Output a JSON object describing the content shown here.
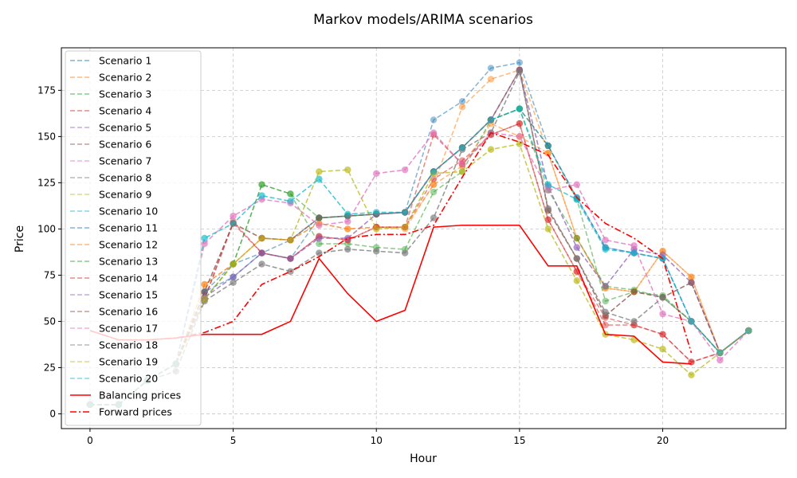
{
  "chart_data": {
    "type": "line",
    "title": "Markov models/ARIMA scenarios",
    "xlabel": "Hour",
    "ylabel": "Price",
    "xlim": [
      -1,
      24.3
    ],
    "ylim": [
      -8,
      198
    ],
    "xticks": [
      0,
      5,
      10,
      15,
      20
    ],
    "yticks": [
      0,
      25,
      50,
      75,
      100,
      125,
      150,
      175
    ],
    "grid": true,
    "legend_position": "upper-left",
    "x": [
      0,
      1,
      2,
      3,
      4,
      5,
      6,
      7,
      8,
      9,
      10,
      11,
      12,
      13,
      14,
      15,
      16,
      17,
      18,
      19,
      20,
      21,
      22,
      23
    ],
    "series": [
      {
        "name": "Scenario 1",
        "color": "#1f77b4",
        "values": [
          5,
          5,
          18,
          27,
          66,
          81,
          87,
          94,
          106,
          107,
          108,
          109,
          159,
          169,
          187,
          190,
          145,
          117,
          90,
          87,
          84,
          50,
          33,
          45
        ]
      },
      {
        "name": "Scenario 2",
        "color": "#ff7f0e",
        "values": [
          5,
          5,
          18,
          27,
          70,
          81,
          95,
          94,
          103,
          100,
          101,
          101,
          124,
          166,
          181,
          186,
          141,
          95,
          68,
          66,
          88,
          74,
          33,
          45
        ]
      },
      {
        "name": "Scenario 3",
        "color": "#2ca02c",
        "values": [
          5,
          5,
          18,
          27,
          62,
          81,
          124,
          119,
          92,
          92,
          90,
          89,
          120,
          131,
          159,
          165,
          145,
          116,
          61,
          66,
          64,
          50,
          33,
          45
        ]
      },
      {
        "name": "Scenario 4",
        "color": "#d62728",
        "values": [
          5,
          5,
          18,
          27,
          62,
          104,
          87,
          84,
          96,
          94,
          101,
          101,
          127,
          137,
          151,
          157,
          105,
          77,
          48,
          48,
          43,
          28,
          33,
          45
        ]
      },
      {
        "name": "Scenario 5",
        "color": "#9467bd",
        "values": [
          5,
          5,
          18,
          27,
          63,
          74,
          87,
          84,
          95,
          95,
          108,
          109,
          131,
          144,
          159,
          186,
          123,
          90,
          69,
          89,
          86,
          71,
          33,
          45
        ]
      },
      {
        "name": "Scenario 6",
        "color": "#8c564b",
        "values": [
          5,
          5,
          18,
          27,
          66,
          103,
          95,
          94,
          106,
          107,
          108,
          109,
          131,
          144,
          159,
          186,
          110,
          84,
          53,
          66,
          63,
          71,
          33,
          45
        ]
      },
      {
        "name": "Scenario 7",
        "color": "#e377c2",
        "values": [
          5,
          5,
          18,
          27,
          92,
          107,
          116,
          114,
          102,
          104,
          130,
          132,
          152,
          135,
          152,
          150,
          121,
          124,
          94,
          91,
          54,
          50,
          29,
          45
        ]
      },
      {
        "name": "Scenario 8",
        "color": "#7f7f7f",
        "values": [
          5,
          5,
          18,
          23,
          61,
          71,
          81,
          77,
          87,
          89,
          88,
          87,
          106,
          143,
          152,
          185,
          111,
          84,
          55,
          50,
          63,
          50,
          33,
          45
        ]
      },
      {
        "name": "Scenario 9",
        "color": "#bcbd22",
        "values": [
          5,
          5,
          18,
          27,
          62,
          81,
          95,
          94,
          131,
          132,
          100,
          101,
          130,
          131,
          143,
          146,
          100,
          72,
          43,
          40,
          35,
          21,
          33,
          45
        ]
      },
      {
        "name": "Scenario 10",
        "color": "#17becf",
        "values": [
          5,
          5,
          18,
          27,
          95,
          103,
          118,
          115,
          127,
          108,
          109,
          109,
          131,
          144,
          159,
          165,
          124,
          116,
          89,
          87,
          84,
          50,
          33,
          45
        ]
      },
      {
        "name": "Scenario 11",
        "color": "#1f77b4",
        "values": [
          5,
          5,
          18,
          27,
          66,
          74,
          87,
          84,
          106,
          107,
          108,
          109,
          131,
          144,
          159,
          165,
          145,
          117,
          90,
          87,
          84,
          50,
          33,
          45
        ]
      },
      {
        "name": "Scenario 12",
        "color": "#ff7f0e",
        "values": [
          5,
          5,
          18,
          27,
          70,
          81,
          95,
          94,
          103,
          100,
          101,
          100,
          124,
          134,
          157,
          150,
          141,
          95,
          68,
          66,
          88,
          74,
          33,
          45
        ]
      },
      {
        "name": "Scenario 13",
        "color": "#2ca02c",
        "values": [
          5,
          5,
          18,
          27,
          62,
          81,
          124,
          119,
          106,
          107,
          108,
          109,
          131,
          144,
          159,
          165,
          121,
          95,
          69,
          67,
          63,
          50,
          33,
          45
        ]
      },
      {
        "name": "Scenario 14",
        "color": "#d62728",
        "values": [
          5,
          5,
          18,
          27,
          62,
          103,
          87,
          84,
          96,
          94,
          101,
          101,
          151,
          135,
          151,
          157,
          105,
          77,
          52,
          48,
          43,
          28,
          33,
          45
        ]
      },
      {
        "name": "Scenario 15",
        "color": "#9467bd",
        "values": [
          5,
          5,
          18,
          27,
          63,
          74,
          87,
          84,
          95,
          95,
          108,
          109,
          131,
          144,
          159,
          186,
          123,
          90,
          69,
          89,
          86,
          71,
          33,
          45
        ]
      },
      {
        "name": "Scenario 16",
        "color": "#8c564b",
        "values": [
          5,
          5,
          18,
          27,
          66,
          103,
          95,
          94,
          106,
          107,
          108,
          109,
          131,
          144,
          159,
          186,
          110,
          84,
          53,
          66,
          63,
          71,
          33,
          45
        ]
      },
      {
        "name": "Scenario 17",
        "color": "#e377c2",
        "values": [
          5,
          5,
          18,
          27,
          92,
          107,
          116,
          114,
          102,
          104,
          130,
          132,
          152,
          135,
          152,
          150,
          121,
          124,
          94,
          91,
          54,
          50,
          29,
          45
        ]
      },
      {
        "name": "Scenario 18",
        "color": "#7f7f7f",
        "values": [
          5,
          5,
          18,
          23,
          61,
          71,
          81,
          77,
          87,
          89,
          88,
          87,
          106,
          143,
          152,
          185,
          111,
          84,
          55,
          50,
          63,
          50,
          33,
          45
        ]
      },
      {
        "name": "Scenario 19",
        "color": "#bcbd22",
        "values": [
          5,
          5,
          18,
          27,
          62,
          81,
          95,
          94,
          131,
          132,
          100,
          101,
          130,
          131,
          143,
          146,
          100,
          72,
          43,
          40,
          35,
          21,
          33,
          45
        ]
      },
      {
        "name": "Scenario 20",
        "color": "#17becf",
        "values": [
          5,
          5,
          18,
          27,
          95,
          103,
          118,
          115,
          127,
          108,
          109,
          109,
          131,
          144,
          159,
          165,
          124,
          116,
          89,
          87,
          84,
          50,
          33,
          45
        ]
      }
    ],
    "reference_lines": [
      {
        "name": "Balancing prices",
        "color": "#ff0000",
        "style": "solid",
        "x": [
          0,
          1,
          2,
          3,
          4,
          5,
          6,
          7,
          8,
          9,
          10,
          11,
          12,
          13,
          14,
          15,
          16,
          17,
          18,
          19,
          20,
          21
        ],
        "values": [
          45,
          40,
          40,
          41,
          43,
          43,
          43,
          50,
          84,
          65,
          50,
          56,
          101,
          102,
          102,
          102,
          80,
          80,
          43,
          42,
          28,
          27
        ]
      },
      {
        "name": "Forward prices",
        "color": "#ff0000",
        "style": "dashdot",
        "x": [
          0,
          1,
          2,
          3,
          4,
          5,
          6,
          7,
          8,
          9,
          10,
          11,
          12,
          13,
          14,
          15,
          16,
          17,
          18,
          19,
          20,
          21
        ],
        "values": [
          45,
          40,
          40,
          41,
          44,
          50,
          70,
          77,
          85,
          95,
          97,
          97,
          102,
          128,
          152,
          147,
          140,
          117,
          103,
          95,
          84,
          33
        ]
      }
    ]
  }
}
